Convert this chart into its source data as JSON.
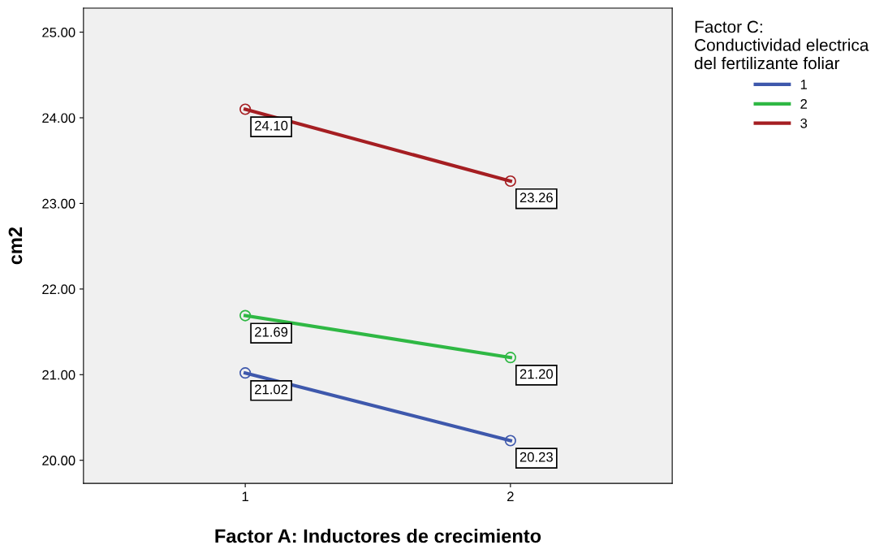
{
  "chart_data": {
    "type": "line",
    "xlabel": "Factor A: Inductores de crecimiento",
    "ylabel": "cm2",
    "legend_title": "Factor C:\nConductividad electrica\ndel fertilizante foliar",
    "categories": [
      "1",
      "2"
    ],
    "series": [
      {
        "name": "1",
        "color": "#3e58ac",
        "values": [
          21.02,
          20.23
        ],
        "value_labels": [
          "21.02",
          "20.23"
        ]
      },
      {
        "name": "2",
        "color": "#2fb844",
        "values": [
          21.69,
          21.2
        ],
        "value_labels": [
          "21.69",
          "21.20"
        ]
      },
      {
        "name": "3",
        "color": "#a51e22",
        "values": [
          24.1,
          23.26
        ],
        "value_labels": [
          "24.10",
          "23.26"
        ]
      }
    ],
    "ylim": [
      19.73,
      25.28
    ],
    "yticks": [
      {
        "value": 20,
        "label": "20.00"
      },
      {
        "value": 21,
        "label": "21.00"
      },
      {
        "value": 22,
        "label": "22.00"
      },
      {
        "value": 23,
        "label": "23.00"
      },
      {
        "value": 24,
        "label": "24.00"
      },
      {
        "value": 25,
        "label": "25.00"
      }
    ],
    "marker": "circle",
    "line_style": "solid",
    "legend": "top right",
    "grid": false
  }
}
